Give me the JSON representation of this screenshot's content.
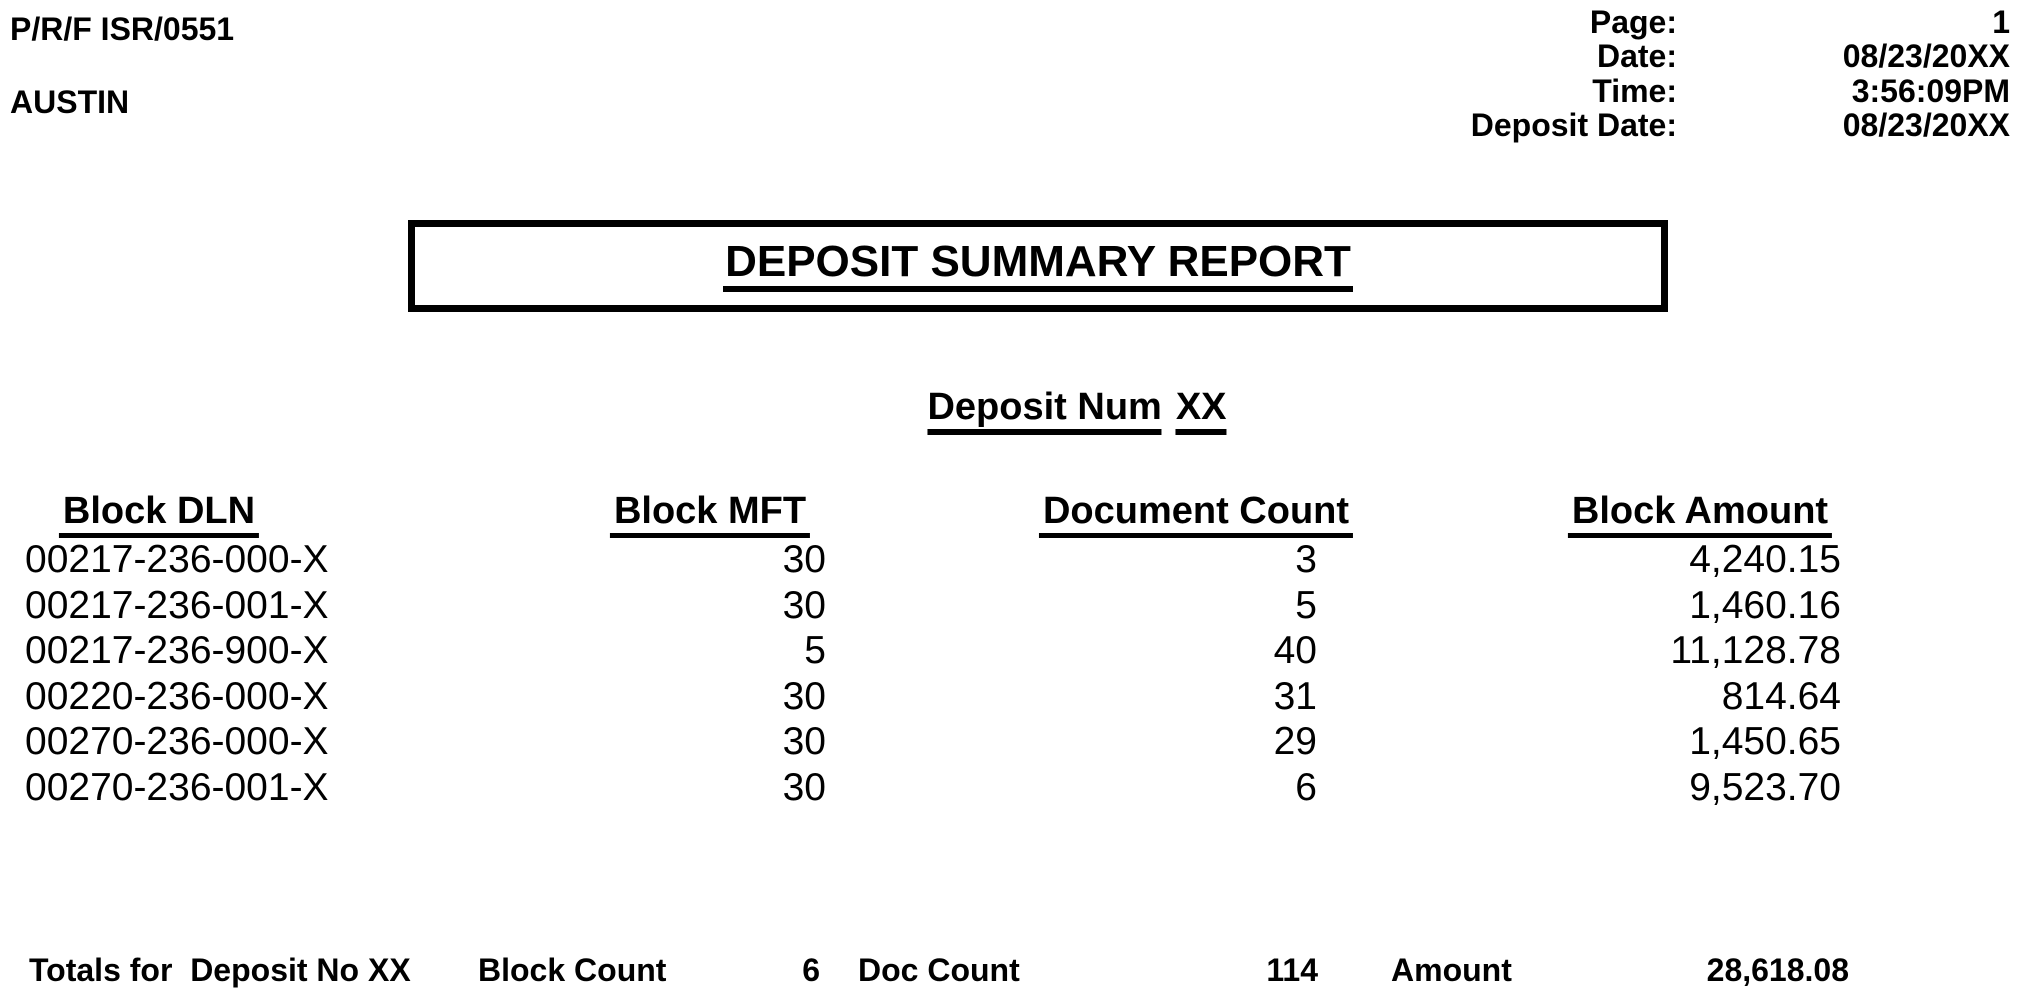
{
  "header": {
    "report_id": "P/R/F ISR/0551",
    "site": "AUSTIN",
    "meta": [
      {
        "label": "Page:",
        "value": "1"
      },
      {
        "label": "Date:",
        "value": "08/23/20XX"
      },
      {
        "label": "Time:",
        "value": "3:56:09PM"
      },
      {
        "label": "Deposit Date:",
        "value": "08/23/20XX"
      }
    ]
  },
  "title": "DEPOSIT SUMMARY REPORT",
  "subtitle": {
    "label": "Deposit Num",
    "value": "XX"
  },
  "table": {
    "columns": [
      "Block DLN",
      "Block MFT",
      "Document Count",
      "Block Amount"
    ],
    "rows": [
      {
        "dln": "00217-236-000-X",
        "mft": "30",
        "doc_count": "3",
        "amount": "4,240.15"
      },
      {
        "dln": "00217-236-001-X",
        "mft": "30",
        "doc_count": "5",
        "amount": "1,460.16"
      },
      {
        "dln": "00217-236-900-X",
        "mft": "5",
        "doc_count": "40",
        "amount": "11,128.78"
      },
      {
        "dln": "00220-236-000-X",
        "mft": "30",
        "doc_count": "31",
        "amount": "814.64"
      },
      {
        "dln": "00270-236-000-X",
        "mft": "30",
        "doc_count": "29",
        "amount": "1,450.65"
      },
      {
        "dln": "00270-236-001-X",
        "mft": "30",
        "doc_count": "6",
        "amount": "9,523.70"
      }
    ]
  },
  "totals": {
    "label": "Totals for  Deposit No XX",
    "block_count_label": "Block Count",
    "block_count": "6",
    "doc_count_label": "Doc Count",
    "doc_count": "114",
    "amount_label": "Amount",
    "amount": "28,618.08"
  },
  "colors": {
    "ink": "#000000",
    "paper": "#ffffff"
  }
}
